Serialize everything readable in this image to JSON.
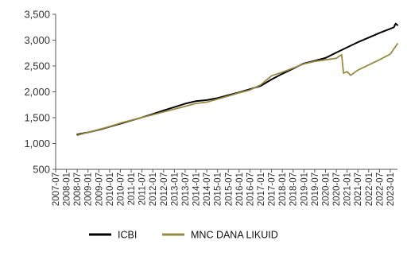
{
  "chart_data": {
    "type": "line",
    "title": "",
    "xlabel": "",
    "ylabel": "",
    "ylim": [
      500,
      3500
    ],
    "y_ticks": [
      "500",
      "1,000",
      "1,500",
      "2,000",
      "2,500",
      "3,000",
      "3,500"
    ],
    "y_tick_values": [
      500,
      1000,
      1500,
      2000,
      2500,
      3000,
      3500
    ],
    "x_ticks": [
      "2007-07",
      "2008-01",
      "2008-07",
      "2009-01",
      "2009-07",
      "2010-01",
      "2010-07",
      "2011-01",
      "2011-07",
      "2012-01",
      "2012-07",
      "2013-01",
      "2013-07",
      "2014-01",
      "2014-07",
      "2015-01",
      "2015-07",
      "2016-01",
      "2016-07",
      "2017-01",
      "2017-07",
      "2018-01",
      "2018-07",
      "2019-01",
      "2019-07",
      "2020-01",
      "2020-07",
      "2021-01",
      "2021-07",
      "2022-01",
      "2022-07",
      "2023-01"
    ],
    "x_range": [
      "2007-07",
      "2023-05"
    ],
    "grid": false,
    "legend_position": "bottom",
    "series": [
      {
        "name": "ICBI",
        "color": "#000000",
        "points": [
          [
            "2008-07",
            1175
          ],
          [
            "2009-01",
            1215
          ],
          [
            "2009-07",
            1265
          ],
          [
            "2010-01",
            1325
          ],
          [
            "2010-07",
            1385
          ],
          [
            "2011-01",
            1445
          ],
          [
            "2011-07",
            1505
          ],
          [
            "2012-01",
            1570
          ],
          [
            "2012-07",
            1640
          ],
          [
            "2013-01",
            1705
          ],
          [
            "2013-07",
            1770
          ],
          [
            "2014-01",
            1820
          ],
          [
            "2014-07",
            1840
          ],
          [
            "2015-01",
            1880
          ],
          [
            "2015-07",
            1935
          ],
          [
            "2016-01",
            1990
          ],
          [
            "2016-07",
            2050
          ],
          [
            "2017-01",
            2115
          ],
          [
            "2017-07",
            2240
          ],
          [
            "2018-01",
            2350
          ],
          [
            "2018-07",
            2450
          ],
          [
            "2019-01",
            2550
          ],
          [
            "2019-07",
            2600
          ],
          [
            "2020-01",
            2655
          ],
          [
            "2020-07",
            2760
          ],
          [
            "2021-01",
            2860
          ],
          [
            "2021-07",
            2960
          ],
          [
            "2022-01",
            3050
          ],
          [
            "2022-07",
            3140
          ],
          [
            "2023-01",
            3220
          ],
          [
            "2023-03",
            3250
          ],
          [
            "2023-04",
            3320
          ],
          [
            "2023-05",
            3290
          ]
        ]
      },
      {
        "name": "MNC DANA LIKUID",
        "color": "#9a8a3f",
        "points": [
          [
            "2008-07",
            1160
          ],
          [
            "2009-01",
            1215
          ],
          [
            "2009-07",
            1270
          ],
          [
            "2010-01",
            1330
          ],
          [
            "2010-07",
            1395
          ],
          [
            "2011-01",
            1450
          ],
          [
            "2011-07",
            1505
          ],
          [
            "2012-01",
            1555
          ],
          [
            "2012-07",
            1610
          ],
          [
            "2013-01",
            1665
          ],
          [
            "2013-07",
            1720
          ],
          [
            "2014-01",
            1775
          ],
          [
            "2014-07",
            1800
          ],
          [
            "2015-01",
            1860
          ],
          [
            "2015-07",
            1920
          ],
          [
            "2016-01",
            1980
          ],
          [
            "2016-07",
            2035
          ],
          [
            "2017-01",
            2135
          ],
          [
            "2017-07",
            2310
          ],
          [
            "2018-01",
            2380
          ],
          [
            "2018-07",
            2460
          ],
          [
            "2019-01",
            2540
          ],
          [
            "2019-07",
            2590
          ],
          [
            "2020-01",
            2620
          ],
          [
            "2020-07",
            2650
          ],
          [
            "2020-10",
            2720
          ],
          [
            "2020-11",
            2360
          ],
          [
            "2021-01",
            2390
          ],
          [
            "2021-03",
            2320
          ],
          [
            "2021-07",
            2420
          ],
          [
            "2022-01",
            2520
          ],
          [
            "2022-07",
            2620
          ],
          [
            "2023-01",
            2730
          ],
          [
            "2023-05",
            2930
          ]
        ]
      }
    ]
  }
}
